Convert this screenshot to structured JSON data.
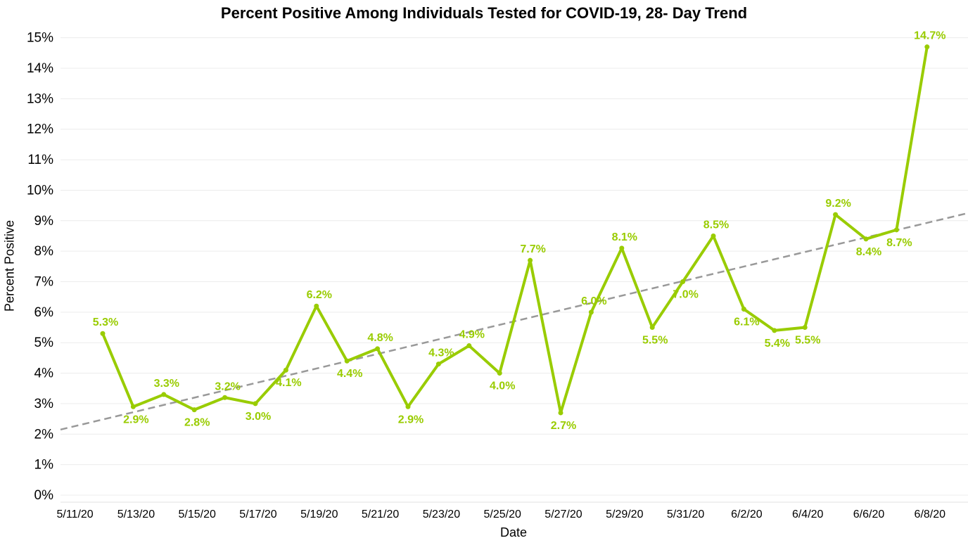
{
  "chart_data": {
    "type": "line",
    "title": "Percent Positive Among Individuals Tested for COVID-19, 28- Day Trend",
    "xlabel": "Date",
    "ylabel": "Percent Positive",
    "x_tick_labels": [
      "5/11/20",
      "5/13/20",
      "5/15/20",
      "5/17/20",
      "5/19/20",
      "5/21/20",
      "5/23/20",
      "5/25/20",
      "5/27/20",
      "5/29/20",
      "5/31/20",
      "6/2/20",
      "6/4/20",
      "6/6/20",
      "6/8/20"
    ],
    "y_tick_labels": [
      "0%",
      "1%",
      "2%",
      "3%",
      "4%",
      "5%",
      "6%",
      "7%",
      "8%",
      "9%",
      "10%",
      "11%",
      "12%",
      "13%",
      "14%",
      "15%"
    ],
    "ylim": [
      0,
      15.5
    ],
    "grid": true,
    "series": [
      {
        "dates": [
          "5/12/20",
          "5/13/20",
          "5/14/20",
          "5/15/20",
          "5/16/20",
          "5/17/20",
          "5/18/20",
          "5/19/20",
          "5/20/20",
          "5/21/20",
          "5/22/20",
          "5/23/20",
          "5/24/20",
          "5/25/20",
          "5/26/20",
          "5/27/20",
          "5/28/20",
          "5/29/20",
          "5/30/20",
          "5/31/20",
          "6/1/20",
          "6/2/20",
          "6/3/20",
          "6/4/20",
          "6/5/20",
          "6/6/20",
          "6/7/20",
          "6/8/20"
        ],
        "values": [
          5.3,
          2.9,
          3.3,
          2.8,
          3.2,
          3.0,
          4.1,
          6.2,
          4.4,
          4.8,
          2.9,
          4.3,
          4.9,
          4.0,
          7.7,
          2.7,
          6.0,
          8.1,
          5.5,
          7.0,
          8.5,
          6.1,
          5.4,
          5.5,
          9.2,
          8.4,
          8.7,
          14.7
        ],
        "labels": [
          "5.3%",
          "2.9%",
          "3.3%",
          "2.8%",
          "3.2%",
          "3.0%",
          "4.1%",
          "6.2%",
          "4.4%",
          "4.8%",
          "2.9%",
          "4.3%",
          "4.9%",
          "4.0%",
          "7.7%",
          "2.7%",
          "6.0%",
          "8.1%",
          "5.5%",
          "7.0%",
          "8.5%",
          "6.1%",
          "5.4%",
          "5.5%",
          "9.2%",
          "8.4%",
          "8.7%",
          "14.7%"
        ],
        "label_position": [
          "above",
          "below",
          "above",
          "below",
          "above",
          "below",
          "below",
          "above",
          "below",
          "above",
          "below",
          "above",
          "above",
          "below",
          "above",
          "below",
          "above",
          "above",
          "below",
          "below",
          "above",
          "below",
          "below",
          "below",
          "above",
          "below",
          "below",
          "above"
        ],
        "color": "#99cc00"
      }
    ],
    "trendline": {
      "type": "linear",
      "style": "dashed",
      "color": "#999999",
      "start_value": 2.15,
      "end_value": 9.25
    }
  }
}
